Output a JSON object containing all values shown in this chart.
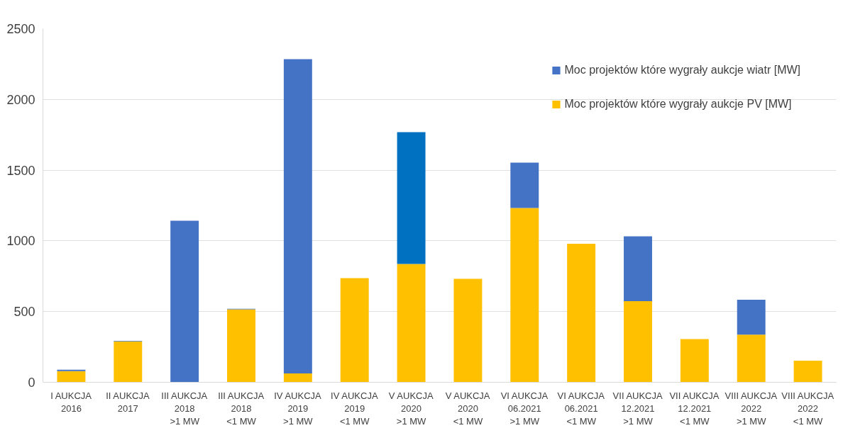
{
  "chart_data": {
    "type": "bar",
    "stacked": true,
    "categories": [
      "I AUKCJA\n2016",
      "II AUKCJA\n2017",
      "III AUKCJA\n2018\n>1 MW",
      "III AUKCJA\n2018\n<1 MW",
      "IV AUKCJA\n2019\n>1 MW",
      "IV AUKCJA\n2019\n<1 MW",
      "V AUKCJA\n2020\n>1 MW",
      "V AUKCJA\n2020\n<1 MW",
      "VI AUKCJA\n06.2021\n>1 MW",
      "VI AUKCJA\n06.2021\n<1 MW",
      "VII AUKCJA\n12.2021\n>1 MW",
      "VII AUKCJA\n12.2021\n<1 MW",
      "VIII AUKCJA\n2022\n>1 MW",
      "VIII AUKCJA\n2022\n<1 MW"
    ],
    "series": [
      {
        "name": "Moc projektów które wygrały aukcje PV [MW]",
        "color": "#ffc000",
        "values": [
          79,
          289,
          0,
          516,
          63,
          737,
          837,
          732,
          1232,
          979,
          574,
          305,
          337,
          153
        ]
      },
      {
        "name": "Moc projektów które wygrały aukcje wiatr [MW]",
        "color": "#4472c4",
        "colors": [
          null,
          null,
          null,
          null,
          null,
          null,
          "#0070c0",
          null,
          null,
          null,
          null,
          null,
          null,
          null
        ],
        "values": [
          10,
          4,
          1142,
          4,
          2221,
          0,
          931,
          0,
          321,
          0,
          458,
          0,
          247,
          0
        ]
      }
    ],
    "ylim": [
      0,
      2500
    ],
    "yticks": [
      0,
      500,
      1000,
      1500,
      2000,
      2500
    ],
    "grid": "y",
    "legend": "top right"
  }
}
